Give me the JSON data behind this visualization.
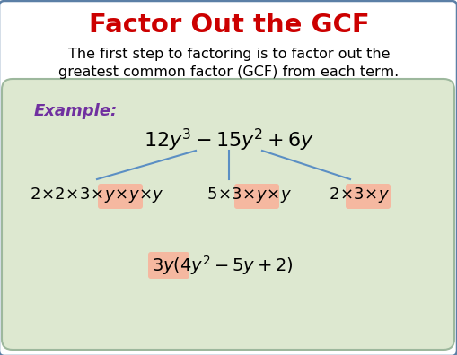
{
  "title": "Factor Out the GCF",
  "title_color": "#cc0000",
  "body_text_line1": "The first step to factoring is to factor out the",
  "body_text_line2": "greatest common factor (GCF) from each term.",
  "example_label": "Example:",
  "example_label_color": "#7030a0",
  "green_box_color": "#dde8d0",
  "green_box_edge_color": "#9db89d",
  "highlight_box_color": "#f5b8a0",
  "background_color": "#ffffff",
  "border_color": "#5b7fa6",
  "fig_width": 5.1,
  "fig_height": 3.96,
  "dpi": 100
}
